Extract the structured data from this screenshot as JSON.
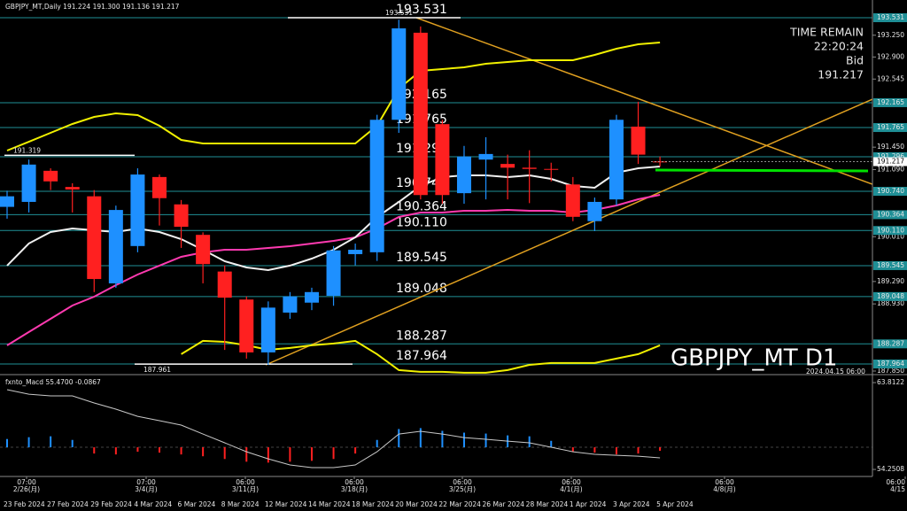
{
  "header": {
    "symbol_info": "GBPJPY_MT,Daily  191.224 191.300 191.136 191.217"
  },
  "info_box": {
    "time_remain_label": "TIME REMAIN",
    "time_remain": "22:20:24",
    "bid_label": "Bid",
    "bid": "191.217"
  },
  "watermark": {
    "symbol": "GBPJPY_MT D1",
    "time": "2024.04.15 06:00"
  },
  "chart_data": [
    {
      "type": "candlestick",
      "categories": [
        "23 Feb 2024",
        null,
        "27 Feb 2024",
        null,
        "29 Feb 2024",
        null,
        "4 Mar 2024",
        null,
        "6 Mar 2024",
        null,
        "8 Mar 2024",
        null,
        "12 Mar 2024",
        null,
        "14 Mar 2024",
        null,
        "18 Mar 2024",
        null,
        "20 Mar 2024",
        null,
        "22 Mar 2024",
        null,
        "26 Mar 2024",
        null,
        "28 Mar 2024",
        null,
        "1 Apr 2024",
        null,
        "3 Apr 2024",
        null,
        "5 Apr 2024"
      ],
      "time_labels": [
        {
          "time": "07:00",
          "date": "2/26(月)"
        },
        {
          "time": "07:00",
          "date": "3/4(月)"
        },
        {
          "time": "06:00",
          "date": "3/11(月)"
        },
        {
          "time": "06:00",
          "date": "3/18(月)"
        },
        {
          "time": "06:00",
          "date": "3/25(月)"
        },
        {
          "time": "06:00",
          "date": "4/1(月)"
        },
        {
          "time": "06:00",
          "date": "4/8(月)"
        },
        {
          "time": "06:00",
          "date": "4/15"
        }
      ],
      "open": [
        190.49,
        190.57,
        191.07,
        190.81,
        190.66,
        189.26,
        189.86,
        190.97,
        190.53,
        190.04,
        189.45,
        189.0,
        188.15,
        188.79,
        188.95,
        189.06,
        189.73,
        189.76,
        191.89,
        193.29,
        191.82,
        190.71,
        191.25,
        191.18,
        191.12,
        191.1,
        190.85,
        190.26,
        190.61,
        191.78,
        191.22
      ],
      "high": [
        190.75,
        191.25,
        191.11,
        190.87,
        190.76,
        190.51,
        191.11,
        191.01,
        190.6,
        190.08,
        189.55,
        189.05,
        188.97,
        189.12,
        189.19,
        189.86,
        189.9,
        191.97,
        193.5,
        193.39,
        191.89,
        191.47,
        191.61,
        191.33,
        191.4,
        191.2,
        190.97,
        190.64,
        191.97,
        192.18,
        191.3
      ],
      "low": [
        190.3,
        190.4,
        190.76,
        190.4,
        189.12,
        189.19,
        189.76,
        190.19,
        189.83,
        189.26,
        188.19,
        188.05,
        187.95,
        188.69,
        188.83,
        188.9,
        189.55,
        189.62,
        191.68,
        190.61,
        190.54,
        190.54,
        190.61,
        190.61,
        190.55,
        190.9,
        190.26,
        190.1,
        190.51,
        191.18,
        191.14
      ],
      "close": [
        190.66,
        191.17,
        190.9,
        190.77,
        189.33,
        190.44,
        191.01,
        190.63,
        190.17,
        189.57,
        189.03,
        188.15,
        188.87,
        189.05,
        189.12,
        189.79,
        189.8,
        191.89,
        193.36,
        190.68,
        190.68,
        191.3,
        191.34,
        191.12,
        191.1,
        191.09,
        190.33,
        190.57,
        191.89,
        191.33,
        191.217
      ],
      "colors": {
        "up": "#1e90ff",
        "down": "#ff2020"
      },
      "series": [
        {
          "color": "#f0f000",
          "values": [
            191.395,
            191.537,
            191.68,
            191.823,
            191.936,
            191.993,
            191.965,
            191.794,
            191.566,
            191.509,
            191.509,
            191.509,
            191.509,
            191.509,
            191.509,
            191.509,
            191.509,
            191.794,
            192.392,
            192.677,
            192.705,
            192.734,
            192.791,
            192.819,
            192.848,
            192.848,
            192.848,
            192.933,
            193.033,
            193.104,
            193.132
          ]
        },
        {
          "color": "#f0f000",
          "values": [
            null,
            null,
            null,
            null,
            null,
            null,
            null,
            null,
            188.121,
            188.335,
            188.32,
            188.264,
            188.192,
            188.221,
            188.264,
            188.292,
            188.335,
            188.121,
            187.865,
            187.837,
            187.837,
            187.822,
            187.822,
            187.865,
            187.95,
            187.979,
            187.979,
            187.979,
            188.05,
            188.121,
            188.264
          ]
        },
        {
          "color": "#ff3ab0",
          "values": [
            188.263,
            188.477,
            188.69,
            188.904,
            189.046,
            189.231,
            189.402,
            189.545,
            189.687,
            189.758,
            189.801,
            189.801,
            189.829,
            189.858,
            189.9,
            189.943,
            190.0,
            190.143,
            190.328,
            190.399,
            190.399,
            190.427,
            190.427,
            190.442,
            190.427,
            190.427,
            190.399,
            190.442,
            190.513,
            190.612,
            190.684
          ]
        },
        {
          "color": "#f0f0f0",
          "values": [
            189.545,
            189.901,
            190.086,
            190.143,
            190.114,
            190.086,
            190.143,
            190.086,
            189.972,
            189.801,
            189.616,
            189.516,
            189.473,
            189.545,
            189.658,
            189.801,
            190.0,
            190.328,
            190.57,
            190.826,
            190.968,
            190.997,
            190.997,
            190.968,
            190.997,
            190.94,
            190.826,
            190.798,
            191.04,
            191.111,
            191.139
          ]
        }
      ],
      "ylim": [
        187.807,
        193.745
      ],
      "yticks": [
        {
          "value": 193.25,
          "label": "193.250"
        },
        {
          "value": 192.9,
          "label": "192.900"
        },
        192.545,
        {
          "value": 191.45,
          "label": "191.450"
        },
        {
          "value": 191.09,
          "label": "191.090"
        },
        {
          "value": 190.01,
          "label": "190.010"
        },
        {
          "value": 189.29,
          "label": "189.290"
        },
        {
          "value": 188.93,
          "label": "188.930"
        },
        {
          "value": 187.85,
          "label": "187.850"
        }
      ],
      "levels": [
        193.531,
        192.165,
        191.765,
        191.296,
        {
          "value": 190.74,
          "label": "190.740"
        },
        190.364,
        {
          "value": 190.11,
          "label": "190.110"
        },
        189.545,
        189.048,
        188.287,
        187.964
      ],
      "level_color": "#1f8f96",
      "current_price": 191.217,
      "markers": [
        193.531,
        191.319,
        187.961
      ]
    },
    {
      "type": "macd",
      "title": "fxnto_Macd 55.4700 -0.0867",
      "ylim": [
        53.28,
        64.4
      ],
      "yticks": [
        63.8122,
        54.2508
      ],
      "baseline": 56.69,
      "series": [
        {
          "color": "#c8c8c8",
          "values": [
            63.03,
            62.54,
            62.35,
            62.35,
            61.57,
            60.89,
            60.1,
            59.62,
            59.13,
            58.15,
            57.18,
            56.2,
            55.42,
            54.74,
            54.45,
            54.45,
            54.74,
            56.2,
            58.15,
            58.45,
            58.15,
            57.76,
            57.57,
            57.37,
            57.18,
            56.69,
            56.2,
            55.91,
            55.81,
            55.71,
            55.52
          ]
        }
      ],
      "histogram": {
        "up_color": "#1e90ff",
        "down_color": "#ff2020",
        "values": [
          57.6,
          57.8,
          57.9,
          57.5,
          56.0,
          55.9,
          56.2,
          56.1,
          55.9,
          55.7,
          55.4,
          55.1,
          55.0,
          55.1,
          55.2,
          55.4,
          56.0,
          57.5,
          58.7,
          58.8,
          58.5,
          58.3,
          58.2,
          58.0,
          57.9,
          57.4,
          56.2,
          56.1,
          55.9,
          56.0,
          56.3
        ]
      }
    }
  ]
}
